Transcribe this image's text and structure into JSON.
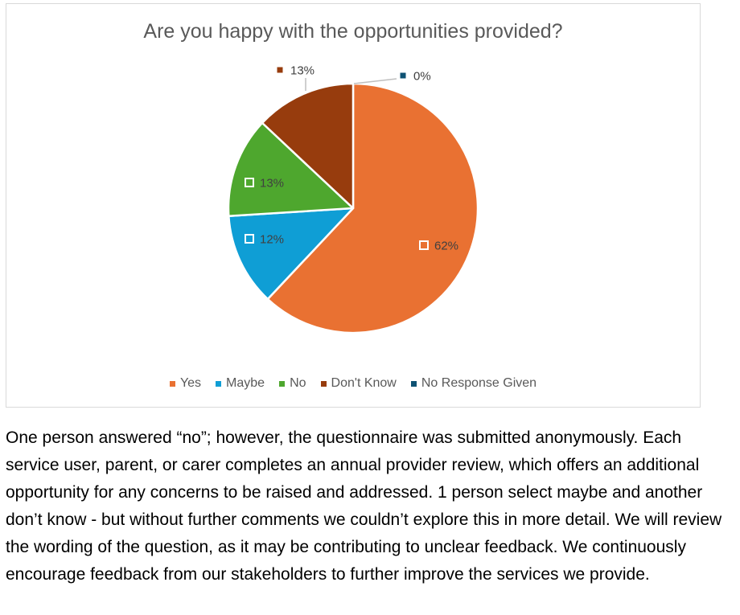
{
  "chart_data": {
    "type": "pie",
    "title": "Are you happy with the opportunities provided?",
    "categories": [
      "Yes",
      "Maybe",
      "No",
      "Don't Know",
      "No Response Given"
    ],
    "values": [
      62,
      12,
      13,
      13,
      0
    ],
    "labels": [
      "62%",
      "12%",
      "13%",
      "13%",
      "0%"
    ],
    "colors": [
      "#E97132",
      "#0F9ED5",
      "#4EA72E",
      "#973C0D",
      "#0E5273"
    ],
    "start_angle_deg": 0,
    "direction": "clockwise",
    "legend_position": "bottom"
  },
  "body_text": "One person answered “no”; however, the questionnaire was submitted anonymously. Each service user, parent, or carer completes an annual provider review, which offers an additional opportunity for any concerns to be raised and addressed. 1 person select maybe and another don’t know - but without further comments we couldn’t explore this in more detail. We will review the wording of the question, as it may be contributing to unclear feedback. We continuously encourage feedback from our stakeholders to further improve the services we provide."
}
